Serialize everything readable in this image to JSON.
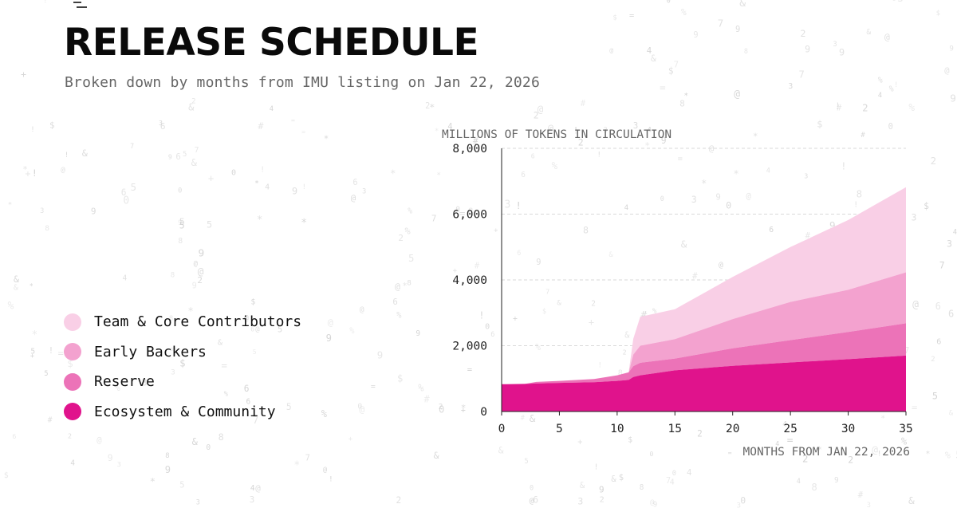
{
  "header": {
    "title": "RELEASE SCHEDULE",
    "subtitle": "Broken down by months from IMU listing on Jan 22, 2026"
  },
  "colors": {
    "team": "#f9cfe6",
    "early_backers": "#f3a2cf",
    "reserve": "#ec73b8",
    "ecosystem": "#e0138c",
    "grid": "#d9d9d9",
    "noise": "#c8c8c8"
  },
  "legend": {
    "items": [
      {
        "label": "Team & Core Contributors",
        "color": "#f9cfe6"
      },
      {
        "label": "Early Backers",
        "color": "#f3a2cf"
      },
      {
        "label": "Reserve",
        "color": "#ec73b8"
      },
      {
        "label": "Ecosystem & Community",
        "color": "#e0138c"
      }
    ]
  },
  "chart_data": {
    "type": "area",
    "stacked": true,
    "title": "",
    "ylabel": "MILLIONS OF TOKENS IN CIRCULATION",
    "xlabel": "MONTHS FROM JAN 22, 2026",
    "xlim": [
      0,
      35
    ],
    "ylim": [
      0,
      8000
    ],
    "xticks": [
      0,
      5,
      10,
      15,
      20,
      25,
      30,
      35
    ],
    "yticks": [
      0,
      2000,
      4000,
      6000,
      8000
    ],
    "ytick_labels": [
      "0",
      "2,000",
      "4,000",
      "6,000",
      "8,000"
    ],
    "grid": "horizontal-dashed",
    "x": [
      0,
      2,
      3,
      5,
      8,
      10,
      11,
      11.4,
      12,
      15,
      20,
      25,
      30,
      35
    ],
    "series": [
      {
        "name": "Ecosystem & Community",
        "color": "#e0138c",
        "values": [
          830,
          840,
          850,
          870,
          890,
          930,
          960,
          1050,
          1100,
          1250,
          1390,
          1490,
          1590,
          1700
        ]
      },
      {
        "name": "Reserve",
        "color": "#ec73b8",
        "values": [
          0,
          0,
          50,
          60,
          100,
          170,
          230,
          330,
          380,
          360,
          530,
          680,
          830,
          980
        ]
      },
      {
        "name": "Early Backers",
        "color": "#f3a2cf",
        "values": [
          0,
          0,
          0,
          0,
          0,
          0,
          0,
          350,
          520,
          590,
          890,
          1160,
          1280,
          1550
        ]
      },
      {
        "name": "Team & Core Contributors",
        "color": "#f9cfe6",
        "values": [
          0,
          0,
          0,
          0,
          0,
          0,
          0,
          480,
          880,
          910,
          1280,
          1670,
          2120,
          2590
        ]
      }
    ]
  }
}
